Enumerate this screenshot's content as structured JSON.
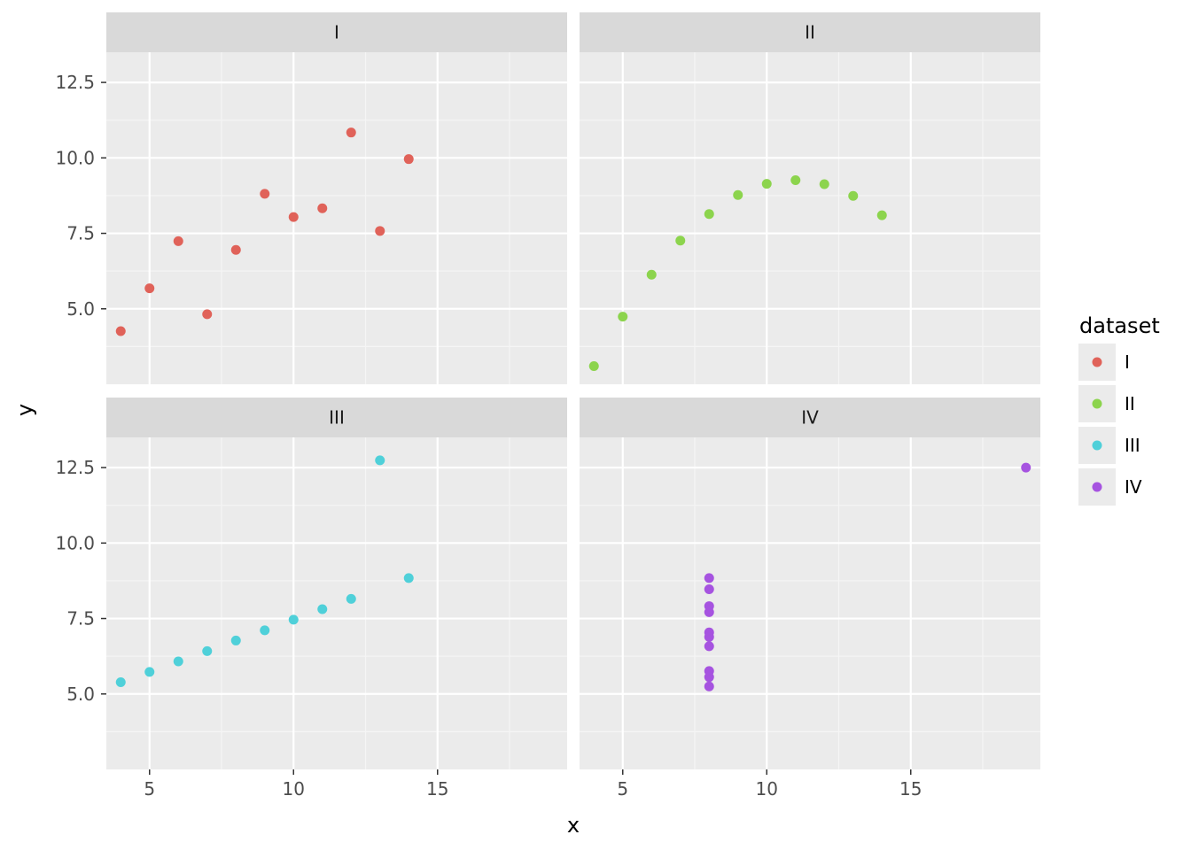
{
  "chart_data": {
    "type": "scatter",
    "xlabel": "x",
    "ylabel": "y",
    "xlim": [
      3.5,
      19.5
    ],
    "ylim": [
      2.5,
      13.5
    ],
    "x_ticks": [
      5,
      10,
      15
    ],
    "x_tick_labels": [
      "5",
      "10",
      "15"
    ],
    "y_ticks": [
      5.0,
      7.5,
      10.0,
      12.5
    ],
    "y_tick_labels": [
      "5.0",
      "7.5",
      "10.0",
      "12.5"
    ],
    "grid": true,
    "facet_layout": [
      2,
      2
    ],
    "legend": {
      "title": "dataset",
      "position": "right"
    },
    "panels": [
      {
        "label": "I",
        "color": "#E06259",
        "points": [
          {
            "x": 4,
            "y": 4.26
          },
          {
            "x": 5,
            "y": 5.68
          },
          {
            "x": 6,
            "y": 7.24
          },
          {
            "x": 7,
            "y": 4.82
          },
          {
            "x": 8,
            "y": 6.95
          },
          {
            "x": 9,
            "y": 8.81
          },
          {
            "x": 10,
            "y": 8.04
          },
          {
            "x": 11,
            "y": 8.33
          },
          {
            "x": 12,
            "y": 10.84
          },
          {
            "x": 13,
            "y": 7.58
          },
          {
            "x": 14,
            "y": 9.96
          }
        ]
      },
      {
        "label": "II",
        "color": "#8CD44D",
        "points": [
          {
            "x": 4,
            "y": 3.1
          },
          {
            "x": 5,
            "y": 4.74
          },
          {
            "x": 6,
            "y": 6.13
          },
          {
            "x": 7,
            "y": 7.26
          },
          {
            "x": 8,
            "y": 8.14
          },
          {
            "x": 9,
            "y": 8.77
          },
          {
            "x": 10,
            "y": 9.14
          },
          {
            "x": 11,
            "y": 9.26
          },
          {
            "x": 12,
            "y": 9.13
          },
          {
            "x": 13,
            "y": 8.74
          },
          {
            "x": 14,
            "y": 8.1
          }
        ]
      },
      {
        "label": "III",
        "color": "#4FD0D9",
        "points": [
          {
            "x": 4,
            "y": 5.39
          },
          {
            "x": 5,
            "y": 5.73
          },
          {
            "x": 6,
            "y": 6.08
          },
          {
            "x": 7,
            "y": 6.42
          },
          {
            "x": 8,
            "y": 6.77
          },
          {
            "x": 9,
            "y": 7.11
          },
          {
            "x": 10,
            "y": 7.46
          },
          {
            "x": 11,
            "y": 7.81
          },
          {
            "x": 12,
            "y": 8.15
          },
          {
            "x": 13,
            "y": 12.74
          },
          {
            "x": 14,
            "y": 8.84
          }
        ]
      },
      {
        "label": "IV",
        "color": "#A653E0",
        "points": [
          {
            "x": 8,
            "y": 6.58
          },
          {
            "x": 8,
            "y": 5.76
          },
          {
            "x": 8,
            "y": 7.71
          },
          {
            "x": 8,
            "y": 8.84
          },
          {
            "x": 8,
            "y": 8.47
          },
          {
            "x": 8,
            "y": 7.04
          },
          {
            "x": 8,
            "y": 5.25
          },
          {
            "x": 19,
            "y": 12.5
          },
          {
            "x": 8,
            "y": 5.56
          },
          {
            "x": 8,
            "y": 7.91
          },
          {
            "x": 8,
            "y": 6.89
          }
        ]
      }
    ]
  },
  "colors": {
    "panel_background": "#EBEBEB",
    "strip_background": "#D9D9D9",
    "grid_major": "#FFFFFF",
    "grid_minor": "#F5F5F5",
    "tick": "#333333"
  }
}
